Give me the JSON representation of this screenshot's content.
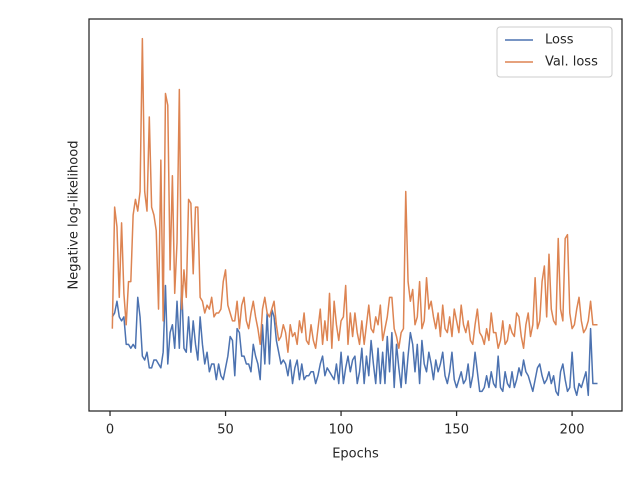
{
  "chart_data": {
    "type": "line",
    "xlabel": "Epochs",
    "ylabel": "Negative log-likelihood",
    "x": [
      1,
      2,
      3,
      4,
      5,
      6,
      7,
      8,
      9,
      10,
      11,
      12,
      13,
      14,
      15,
      16,
      17,
      18,
      19,
      20,
      21,
      22,
      23,
      24,
      25,
      26,
      27,
      28,
      29,
      30,
      31,
      32,
      33,
      34,
      35,
      36,
      37,
      38,
      39,
      40,
      41,
      42,
      43,
      44,
      45,
      46,
      47,
      48,
      49,
      50,
      51,
      52,
      53,
      54,
      55,
      56,
      57,
      58,
      59,
      60,
      61,
      62,
      63,
      64,
      65,
      66,
      67,
      68,
      69,
      70,
      71,
      72,
      73,
      74,
      75,
      76,
      77,
      78,
      79,
      80,
      81,
      82,
      83,
      84,
      85,
      86,
      87,
      88,
      89,
      90,
      91,
      92,
      93,
      94,
      95,
      96,
      97,
      98,
      99,
      100,
      101,
      102,
      103,
      104,
      105,
      106,
      107,
      108,
      109,
      110,
      111,
      112,
      113,
      114,
      115,
      116,
      117,
      118,
      119,
      120,
      121,
      122,
      123,
      124,
      125,
      126,
      127,
      128,
      129,
      130,
      131,
      132,
      133,
      134,
      135,
      136,
      137,
      138,
      139,
      140,
      141,
      142,
      143,
      144,
      145,
      146,
      147,
      148,
      149,
      150,
      151,
      152,
      153,
      154,
      155,
      156,
      157,
      158,
      159,
      160,
      161,
      162,
      163,
      164,
      165,
      166,
      167,
      168,
      169,
      170,
      171,
      172,
      173,
      174,
      175,
      176,
      177,
      178,
      179,
      180,
      181,
      182,
      183,
      184,
      185,
      186,
      187,
      188,
      189,
      190,
      191,
      192,
      193,
      194,
      195,
      196,
      197,
      198,
      199,
      200,
      201,
      202,
      203,
      204,
      205,
      206,
      207,
      208,
      209,
      210,
      211
    ],
    "series": [
      {
        "name": "Loss",
        "color": "#4c72b0",
        "values": [
          0.24,
          0.25,
          0.28,
          0.24,
          0.23,
          0.24,
          0.17,
          0.17,
          0.16,
          0.17,
          0.16,
          0.29,
          0.24,
          0.14,
          0.13,
          0.15,
          0.11,
          0.11,
          0.13,
          0.13,
          0.12,
          0.11,
          0.15,
          0.32,
          0.12,
          0.2,
          0.22,
          0.16,
          0.28,
          0.16,
          0.32,
          0.16,
          0.15,
          0.24,
          0.15,
          0.23,
          0.17,
          0.13,
          0.24,
          0.17,
          0.12,
          0.15,
          0.1,
          0.12,
          0.12,
          0.08,
          0.12,
          0.09,
          0.08,
          0.11,
          0.14,
          0.19,
          0.18,
          0.09,
          0.21,
          0.2,
          0.14,
          0.14,
          0.12,
          0.12,
          0.1,
          0.17,
          0.14,
          0.12,
          0.08,
          0.22,
          0.12,
          0.25,
          0.12,
          0.26,
          0.24,
          0.18,
          0.15,
          0.12,
          0.13,
          0.12,
          0.09,
          0.13,
          0.07,
          0.11,
          0.13,
          0.08,
          0.12,
          0.08,
          0.09,
          0.09,
          0.1,
          0.1,
          0.07,
          0.09,
          0.12,
          0.14,
          0.09,
          0.11,
          0.1,
          0.09,
          0.08,
          0.12,
          0.07,
          0.15,
          0.07,
          0.11,
          0.14,
          0.1,
          0.13,
          0.14,
          0.07,
          0.1,
          0.16,
          0.07,
          0.14,
          0.09,
          0.18,
          0.12,
          0.07,
          0.16,
          0.07,
          0.15,
          0.07,
          0.19,
          0.1,
          0.2,
          0.06,
          0.17,
          0.11,
          0.06,
          0.15,
          0.07,
          0.14,
          0.2,
          0.17,
          0.1,
          0.17,
          0.07,
          0.18,
          0.12,
          0.1,
          0.15,
          0.12,
          0.08,
          0.13,
          0.1,
          0.12,
          0.15,
          0.09,
          0.07,
          0.1,
          0.15,
          0.08,
          0.06,
          0.08,
          0.1,
          0.07,
          0.08,
          0.12,
          0.06,
          0.09,
          0.15,
          0.1,
          0.05,
          0.05,
          0.06,
          0.09,
          0.06,
          0.1,
          0.07,
          0.06,
          0.14,
          0.06,
          0.05,
          0.1,
          0.07,
          0.06,
          0.1,
          0.06,
          0.08,
          0.11,
          0.09,
          0.13,
          0.1,
          0.09,
          0.07,
          0.05,
          0.08,
          0.11,
          0.12,
          0.09,
          0.07,
          0.08,
          0.1,
          0.07,
          0.09,
          0.05,
          0.04,
          0.1,
          0.12,
          0.08,
          0.05,
          0.06,
          0.15,
          0.06,
          0.04,
          0.07,
          0.06,
          0.08,
          0.1,
          0.04,
          0.21,
          0.07,
          0.07,
          0.07
        ]
      },
      {
        "name": "Val. loss",
        "color": "#dd8452",
        "values": [
          0.21,
          0.52,
          0.47,
          0.29,
          0.48,
          0.3,
          0.22,
          0.33,
          0.33,
          0.5,
          0.54,
          0.51,
          0.56,
          0.95,
          0.56,
          0.51,
          0.75,
          0.52,
          0.5,
          0.46,
          0.26,
          0.64,
          0.23,
          0.81,
          0.78,
          0.36,
          0.6,
          0.3,
          0.43,
          0.82,
          0.26,
          0.36,
          0.29,
          0.54,
          0.53,
          0.35,
          0.52,
          0.52,
          0.29,
          0.28,
          0.25,
          0.27,
          0.26,
          0.29,
          0.24,
          0.25,
          0.25,
          0.26,
          0.33,
          0.36,
          0.27,
          0.25,
          0.23,
          0.23,
          0.28,
          0.21,
          0.27,
          0.29,
          0.23,
          0.21,
          0.25,
          0.28,
          0.24,
          0.21,
          0.17,
          0.26,
          0.29,
          0.25,
          0.24,
          0.26,
          0.28,
          0.22,
          0.18,
          0.19,
          0.22,
          0.2,
          0.15,
          0.22,
          0.19,
          0.2,
          0.17,
          0.23,
          0.2,
          0.25,
          0.18,
          0.17,
          0.22,
          0.18,
          0.16,
          0.21,
          0.26,
          0.17,
          0.23,
          0.18,
          0.3,
          0.16,
          0.28,
          0.22,
          0.18,
          0.23,
          0.24,
          0.32,
          0.17,
          0.25,
          0.19,
          0.25,
          0.2,
          0.17,
          0.23,
          0.17,
          0.22,
          0.27,
          0.21,
          0.2,
          0.24,
          0.22,
          0.27,
          0.18,
          0.21,
          0.24,
          0.29,
          0.29,
          0.21,
          0.19,
          0.16,
          0.2,
          0.21,
          0.56,
          0.33,
          0.28,
          0.31,
          0.22,
          0.24,
          0.33,
          0.21,
          0.23,
          0.34,
          0.26,
          0.28,
          0.24,
          0.21,
          0.25,
          0.19,
          0.27,
          0.21,
          0.2,
          0.24,
          0.19,
          0.26,
          0.23,
          0.2,
          0.27,
          0.22,
          0.2,
          0.23,
          0.18,
          0.17,
          0.22,
          0.26,
          0.2,
          0.19,
          0.17,
          0.21,
          0.18,
          0.25,
          0.2,
          0.2,
          0.16,
          0.18,
          0.23,
          0.17,
          0.18,
          0.22,
          0.2,
          0.19,
          0.25,
          0.24,
          0.19,
          0.16,
          0.22,
          0.25,
          0.19,
          0.22,
          0.34,
          0.21,
          0.23,
          0.33,
          0.37,
          0.24,
          0.4,
          0.26,
          0.23,
          0.22,
          0.44,
          0.26,
          0.23,
          0.44,
          0.45,
          0.25,
          0.21,
          0.22,
          0.26,
          0.29,
          0.23,
          0.2,
          0.21,
          0.23,
          0.28,
          0.22,
          0.22,
          0.22
        ]
      }
    ],
    "xlim": [
      -9.1,
      221.6
    ],
    "xticks": [
      0,
      50,
      100,
      150,
      200
    ],
    "ylim": [
      0,
      1
    ],
    "legend": "upper right"
  }
}
